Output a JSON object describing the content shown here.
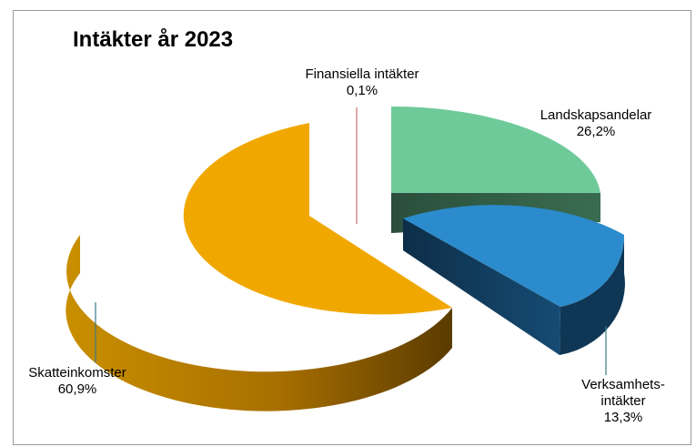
{
  "chart_data": {
    "type": "pie",
    "style": "3d-exploded",
    "title": "Intäkter år 2023",
    "slices": [
      {
        "name": "Landskapsandelar",
        "value": 26.2,
        "label": "26,2%",
        "color": "#6fca9a",
        "side_color": "#2e5a43"
      },
      {
        "name": "Verksamhets-intäkter",
        "value": 13.3,
        "label": "13,3%",
        "color": "#2b8bcc",
        "side_color": "#113a5a"
      },
      {
        "name": "Skatteinkomster",
        "value": 60.9,
        "label": "60,9%",
        "color": "#f0a800",
        "side_color": "#b07800"
      },
      {
        "name": "Finansiella intäkter",
        "value": 0.1,
        "label": "0,1%",
        "color": "#d98a8a",
        "side_color": "#b06060"
      }
    ],
    "legend": "none"
  },
  "labels": {
    "finansiella_name": "Finansiella intäkter",
    "finansiella_pct": "0,1%",
    "landskap_name": "Landskapsandelar",
    "landskap_pct": "26,2%",
    "verksamhet_line1": "Verksamhets-",
    "verksamhet_line2": "intäkter",
    "verksamhet_pct": "13,3%",
    "skatte_name": "Skatteinkomster",
    "skatte_pct": "60,9%"
  }
}
